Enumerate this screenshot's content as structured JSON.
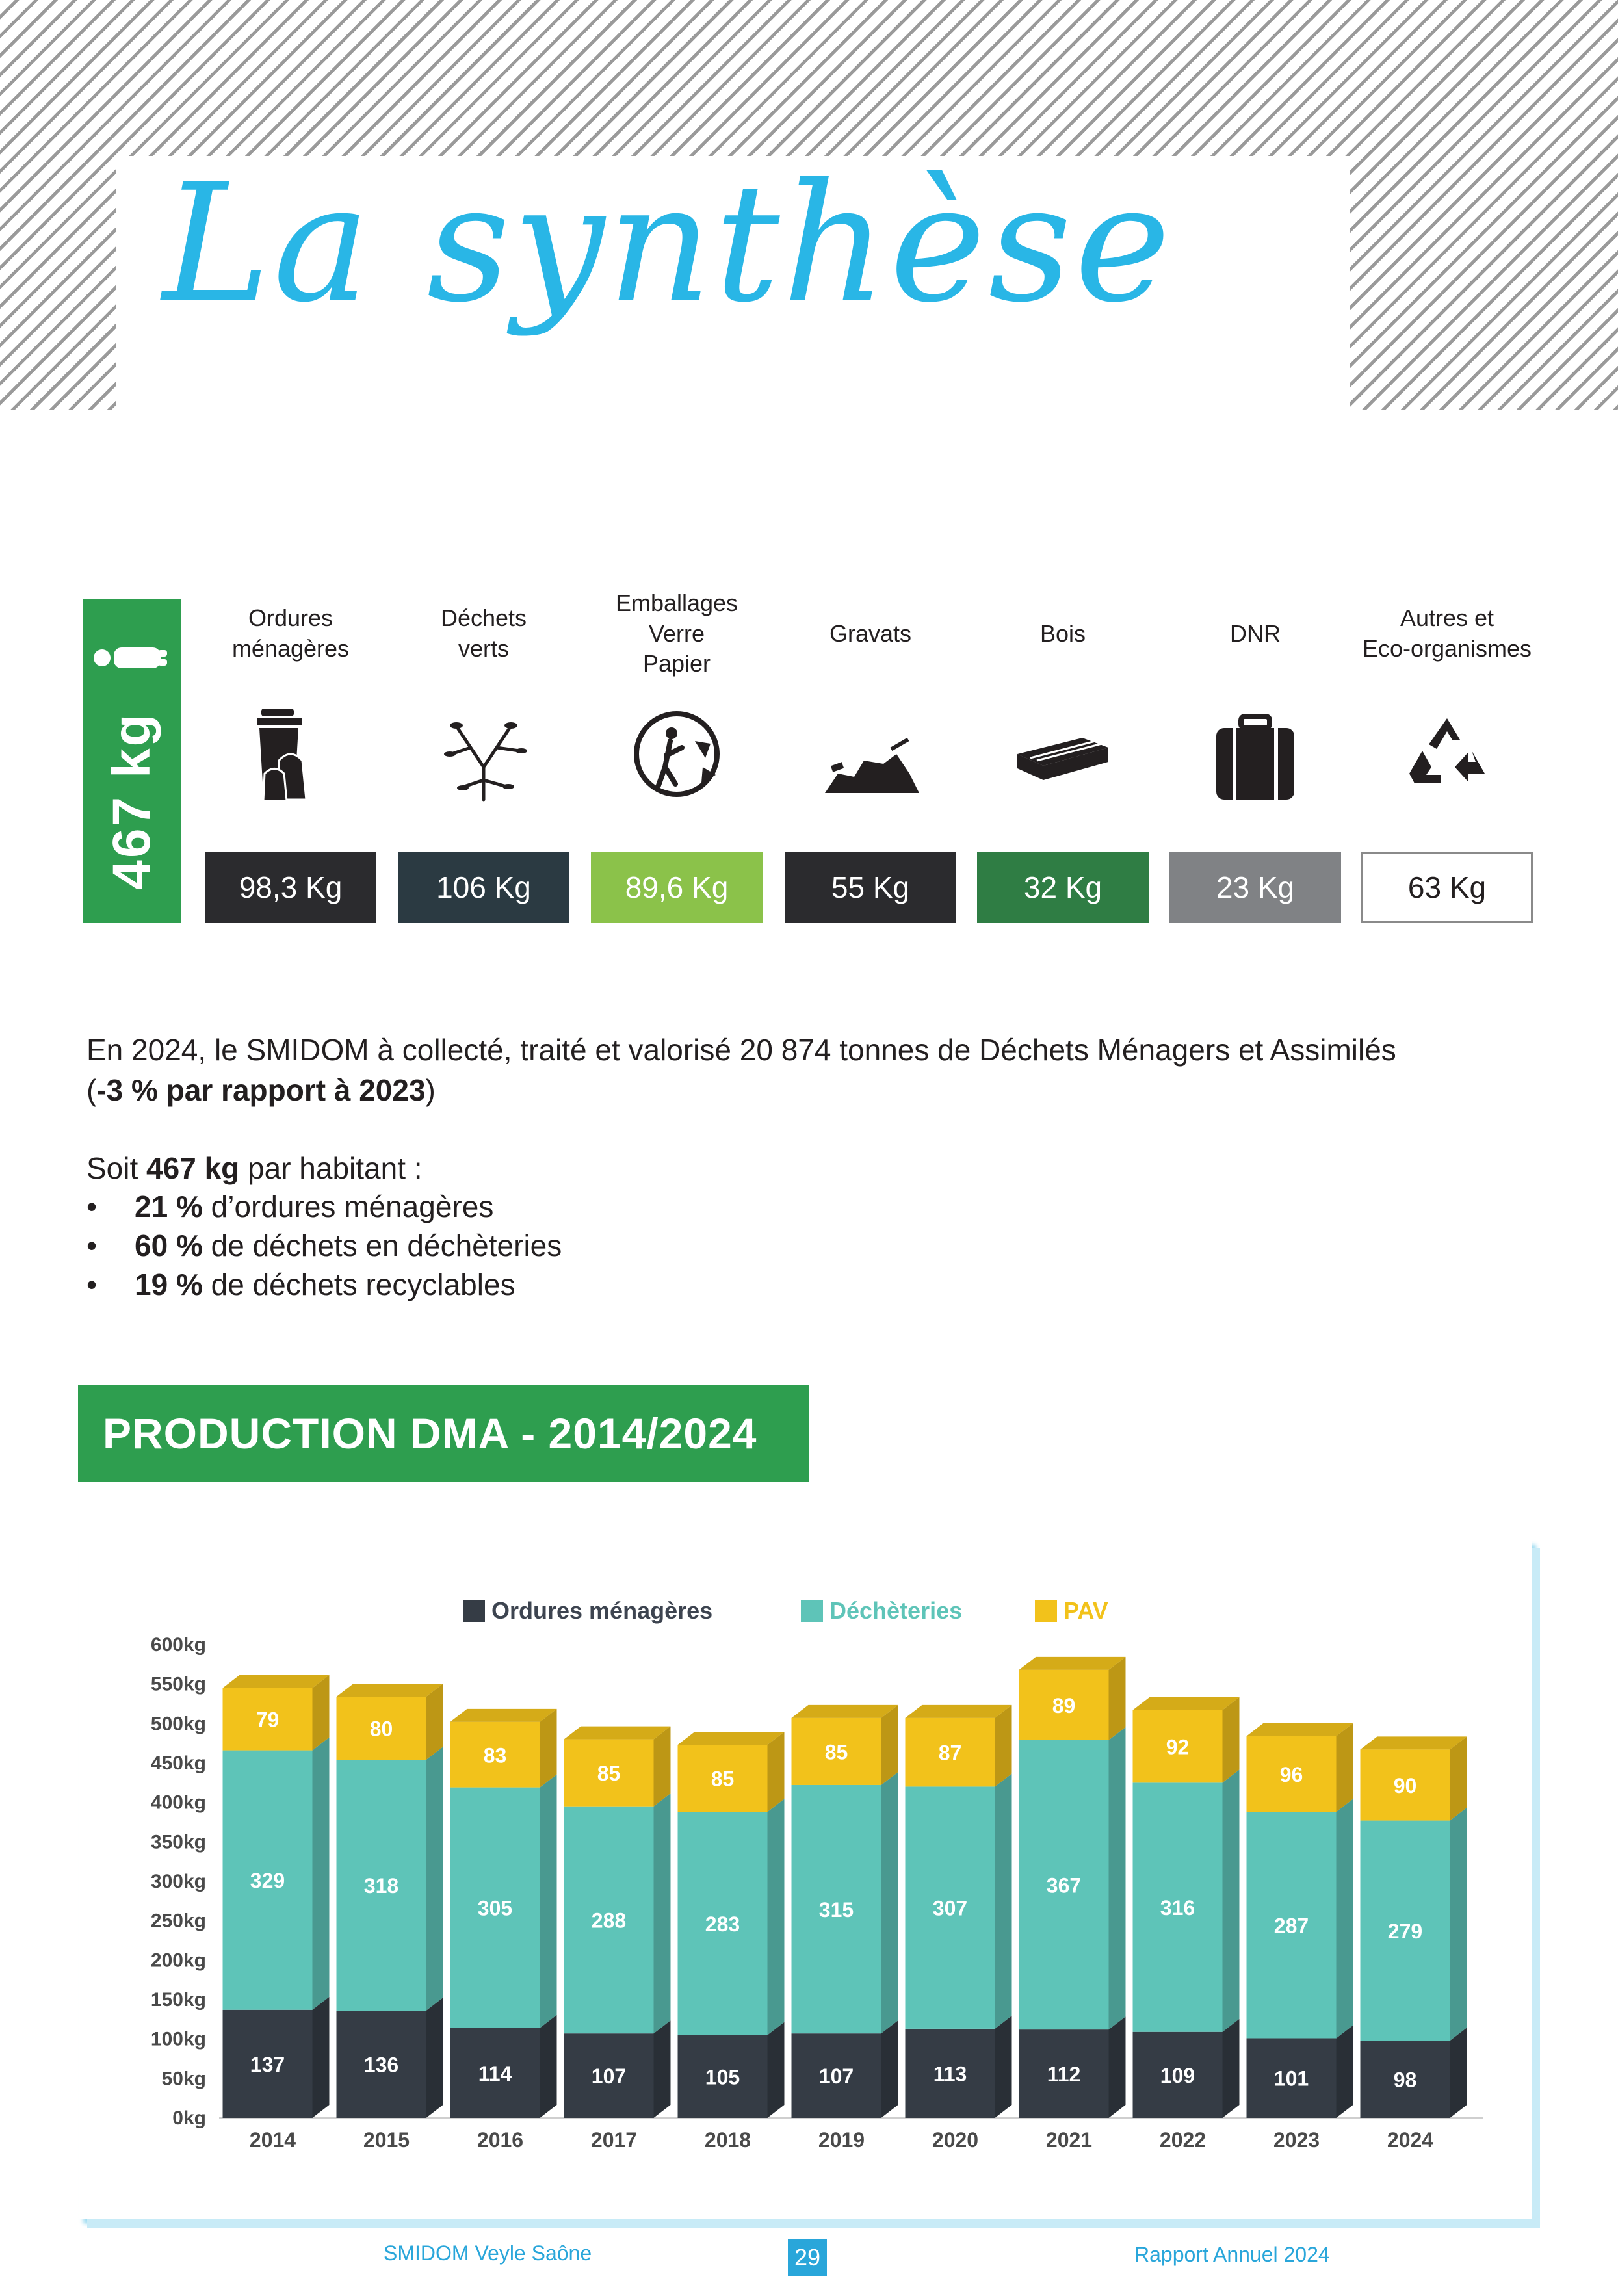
{
  "title": "La synthèse",
  "summary": {
    "total": "467 kg",
    "categories": [
      {
        "label": "Ordures\nménagères",
        "icon": "trash-bin-icon",
        "value": "98,3 Kg",
        "color": "#2b2b2e"
      },
      {
        "label": "Déchets\nverts",
        "icon": "branch-icon",
        "value": "106 Kg",
        "color": "#2b3a42"
      },
      {
        "label": "Emballages\nVerre\nPapier",
        "icon": "recycle-person-icon",
        "value": "89,6 Kg",
        "color": "#8bc24a"
      },
      {
        "label": "Gravats",
        "icon": "rubble-icon",
        "value": "55 Kg",
        "color": "#2b2b2e"
      },
      {
        "label": "Bois",
        "icon": "pallet-icon",
        "value": "32 Kg",
        "color": "#2f7d44"
      },
      {
        "label": "DNR",
        "icon": "suitcase-icon",
        "value": "23 Kg",
        "color": "#808285"
      },
      {
        "label": "Autres et\nEco-organismes",
        "icon": "recycle-icon",
        "value": "63 Kg",
        "color": "#ffffff"
      }
    ]
  },
  "text": {
    "p1_a": "En 2024, le SMIDOM à collecté, traité et valorisé 20 874 tonnes de Déchets Ménagers et Assimilés",
    "p1_b_open": "(",
    "p1_b_bold": "-3 % par rapport à 2023",
    "p1_b_close": ")",
    "p2_a": "Soit ",
    "p2_bold": "467 kg",
    "p2_b": " par habitant :",
    "bullets": [
      {
        "bold": "21 %",
        "text": " d’ordures ménagères"
      },
      {
        "bold": "60 %",
        "text": " de déchets en déchèteries"
      },
      {
        "bold": "19 %",
        "text": " de déchets recyclables"
      }
    ]
  },
  "section_title": "PRODUCTION DMA - 2014/2024",
  "chart_data": {
    "type": "bar",
    "stacked": true,
    "categories": [
      "2014",
      "2015",
      "2016",
      "2017",
      "2018",
      "2019",
      "2020",
      "2021",
      "2022",
      "2023",
      "2024"
    ],
    "series": [
      {
        "name": "Ordures ménagères",
        "color": "#353c45",
        "values": [
          137,
          136,
          114,
          107,
          105,
          107,
          113,
          112,
          109,
          101,
          98
        ]
      },
      {
        "name": "Déchèteries",
        "color": "#5ec4b8",
        "values": [
          329,
          318,
          305,
          288,
          283,
          315,
          307,
          367,
          316,
          287,
          279
        ]
      },
      {
        "name": "PAV",
        "color": "#f2c21b",
        "values": [
          79,
          80,
          83,
          85,
          85,
          85,
          87,
          89,
          92,
          96,
          90
        ]
      }
    ],
    "ylim": [
      0,
      600
    ],
    "yticks": [
      "0kg",
      "50kg",
      "100kg",
      "150kg",
      "200kg",
      "250kg",
      "300kg",
      "350kg",
      "400kg",
      "450kg",
      "500kg",
      "550kg",
      "600kg"
    ],
    "legend_position": "top"
  },
  "footer": {
    "left": "SMIDOM Veyle Saône",
    "page": "29",
    "right": "Rapport Annuel 2024"
  }
}
